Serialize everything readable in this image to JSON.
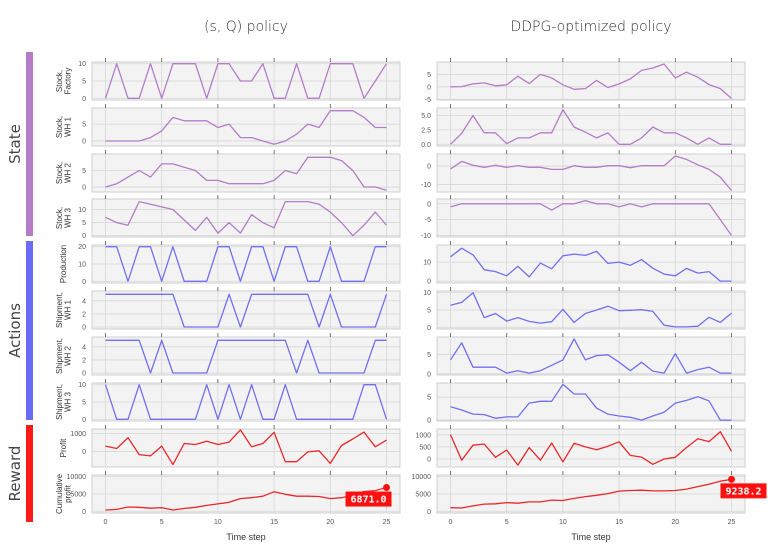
{
  "sections": [
    {
      "label": "State",
      "color": "#b57cc8"
    },
    {
      "label": "Actions",
      "color": "#6b6bf5"
    },
    {
      "label": "Reward",
      "color": "#ff1a1a"
    }
  ],
  "colors": {
    "state": "#b57cc8",
    "actions": "#7070f0",
    "reward": "#e8282a"
  },
  "chart_data": [
    {
      "type": "line",
      "title": "(s, Q) policy",
      "xlabel": "Time step",
      "x": [
        0,
        1,
        2,
        3,
        4,
        5,
        6,
        7,
        8,
        9,
        10,
        11,
        12,
        13,
        14,
        15,
        16,
        17,
        18,
        19,
        20,
        21,
        22,
        23,
        24,
        25
      ],
      "xticks": [
        0,
        5,
        10,
        15,
        20,
        25
      ],
      "xlim": [
        -1.2,
        26.2
      ],
      "grid": true,
      "final_annotation": "6871.0",
      "subplots": [
        {
          "section": "State",
          "ylabel_lines": [
            "Stock,",
            "Factory"
          ],
          "yticks": [
            0,
            5,
            10
          ],
          "ylim": [
            -0.5,
            10.5
          ],
          "values": [
            0,
            10,
            0,
            0,
            10,
            0,
            10,
            10,
            10,
            0,
            10,
            10,
            5,
            5,
            10,
            0,
            0,
            10,
            0,
            0,
            10,
            10,
            10,
            0,
            5,
            10
          ]
        },
        {
          "section": "State",
          "ylabel_lines": [
            "Stock,",
            "WH 1"
          ],
          "yticks": [
            0,
            5
          ],
          "ylim": [
            -1.5,
            9.8
          ],
          "values": [
            0,
            0,
            0,
            0,
            1,
            3,
            7,
            6,
            6,
            6,
            4,
            5,
            1,
            1,
            0,
            -1,
            0,
            2,
            5,
            4,
            9,
            9,
            9,
            7,
            4,
            4
          ]
        },
        {
          "section": "State",
          "ylabel_lines": [
            "Stock,",
            "WH 2"
          ],
          "yticks": [
            0,
            5
          ],
          "ylim": [
            -1.5,
            10
          ],
          "values": [
            0,
            1,
            3,
            5,
            3,
            7,
            7,
            6,
            5,
            2,
            2,
            1,
            1,
            1,
            1,
            2,
            5,
            4,
            9,
            9,
            9,
            8,
            5,
            0,
            0,
            -1
          ]
        },
        {
          "section": "State",
          "ylabel_lines": [
            "Stock,",
            "WH 3"
          ],
          "yticks": [
            0,
            5,
            10
          ],
          "ylim": [
            -0.5,
            14
          ],
          "values": [
            7,
            5,
            4,
            13,
            12,
            11,
            10,
            6,
            2,
            7,
            1,
            5,
            1,
            8,
            5,
            3,
            13,
            13,
            13,
            12,
            9,
            5,
            0,
            4,
            9,
            4
          ]
        },
        {
          "section": "Actions",
          "ylabel_lines": [
            "Production"
          ],
          "yticks": [
            0,
            10,
            20
          ],
          "ylim": [
            -1,
            21
          ],
          "values": [
            20,
            20,
            0,
            20,
            20,
            0,
            20,
            0,
            0,
            0,
            20,
            20,
            0,
            20,
            20,
            0,
            20,
            20,
            0,
            0,
            20,
            0,
            0,
            0,
            20,
            20
          ]
        },
        {
          "section": "Actions",
          "ylabel_lines": [
            "Shipment,",
            "WH 1"
          ],
          "yticks": [
            0,
            2,
            4
          ],
          "ylim": [
            -0.3,
            5.5
          ],
          "values": [
            5,
            5,
            5,
            5,
            5,
            5,
            5,
            0,
            0,
            0,
            0,
            5,
            0,
            5,
            5,
            5,
            5,
            5,
            5,
            0,
            5,
            0,
            0,
            0,
            0,
            5
          ]
        },
        {
          "section": "Actions",
          "ylabel_lines": [
            "Shipment,",
            "WH 2"
          ],
          "yticks": [
            0,
            2,
            4
          ],
          "ylim": [
            -0.3,
            5.5
          ],
          "values": [
            5,
            5,
            5,
            5,
            0,
            5,
            0,
            0,
            0,
            0,
            5,
            5,
            5,
            5,
            5,
            5,
            5,
            0,
            5,
            0,
            0,
            0,
            0,
            0,
            5,
            5
          ]
        },
        {
          "section": "Actions",
          "ylabel_lines": [
            "Shipment,",
            "WH 3"
          ],
          "yticks": [
            0,
            5,
            10
          ],
          "ylim": [
            -0.5,
            10.5
          ],
          "values": [
            10,
            0,
            0,
            10,
            0,
            0,
            0,
            0,
            0,
            10,
            0,
            10,
            0,
            10,
            0,
            0,
            10,
            0,
            0,
            0,
            0,
            0,
            0,
            10,
            10,
            0
          ]
        },
        {
          "section": "Reward",
          "ylabel_lines": [
            "Profit"
          ],
          "yticks": [
            0,
            1000
          ],
          "ylim": [
            -850,
            1240
          ],
          "values": [
            300,
            170,
            760,
            -170,
            -240,
            300,
            -720,
            440,
            390,
            570,
            390,
            520,
            1190,
            260,
            440,
            1060,
            -560,
            -560,
            -20,
            40,
            -650,
            330,
            690,
            1070,
            260,
            630
          ]
        },
        {
          "section": "Reward",
          "ylabel_lines": [
            "Cumulative",
            "profit"
          ],
          "yticks": [
            0,
            5000,
            10000
          ],
          "ylim": [
            -500,
            10500
          ],
          "values": [
            360,
            540,
            1250,
            1160,
            890,
            1070,
            360,
            800,
            1160,
            1700,
            2140,
            2590,
            3660,
            3930,
            4370,
            5625,
            4900,
            4370,
            4370,
            4280,
            3660,
            3930,
            4640,
            5710,
            5980,
            6871.0
          ]
        }
      ]
    },
    {
      "type": "line",
      "title": "DDPG-optimized policy",
      "xlabel": "Time step",
      "x": [
        0,
        1,
        2,
        3,
        4,
        5,
        6,
        7,
        8,
        9,
        10,
        11,
        12,
        13,
        14,
        15,
        16,
        17,
        18,
        19,
        20,
        21,
        22,
        23,
        24,
        25
      ],
      "xticks": [
        0,
        5,
        10,
        15,
        20,
        25
      ],
      "xlim": [
        -1.2,
        26.2
      ],
      "grid": true,
      "final_annotation": "9238.2",
      "subplots": [
        {
          "section": "State",
          "yticks": [
            -5,
            0,
            5
          ],
          "ylim": [
            -5.3,
            10
          ],
          "values": [
            0,
            0.1,
            1.2,
            1.6,
            0.4,
            0.8,
            4.3,
            1.3,
            5,
            3.6,
            0.8,
            -1,
            -0.7,
            2.6,
            -0.3,
            1.2,
            3.2,
            6.6,
            7.6,
            9.2,
            3.6,
            5.9,
            3.9,
            0.9,
            -0.7,
            -4.7
          ]
        },
        {
          "section": "State",
          "yticks": [
            0.0,
            2.5,
            5.0
          ],
          "ytick_labels": [
            "0.0",
            "2.5",
            "5.0"
          ],
          "ylim": [
            -0.3,
            6.3
          ],
          "values": [
            0,
            1.9,
            5,
            2,
            2,
            0.1,
            1.1,
            1.1,
            2,
            2,
            6,
            3,
            2.1,
            1.1,
            2,
            0,
            0,
            1.1,
            3,
            2,
            2,
            1.1,
            0,
            1.1,
            0,
            0
          ]
        },
        {
          "section": "State",
          "yticks": [
            -10,
            0
          ],
          "ylim": [
            -14,
            6.5
          ],
          "values": [
            -1.6,
            2.5,
            0.4,
            -0.7,
            0.4,
            -0.7,
            0.2,
            -0.7,
            -0.7,
            -1.8,
            -1.8,
            0.2,
            -0.7,
            -0.7,
            0.2,
            0.2,
            -0.9,
            0.2,
            0.2,
            0.2,
            5.4,
            3.6,
            0.7,
            -1.8,
            -6,
            -13.2
          ]
        },
        {
          "section": "State",
          "yticks": [
            -10,
            -5,
            0
          ],
          "ylim": [
            -10.5,
            1.5
          ],
          "values": [
            -1,
            0,
            0,
            0,
            0,
            0,
            0,
            0,
            0,
            -2,
            0,
            0,
            1,
            0,
            0,
            -1,
            0,
            -1,
            0,
            0,
            0,
            0,
            0,
            0,
            -5,
            -10
          ]
        },
        {
          "section": "Actions",
          "yticks": [
            0,
            10
          ],
          "ylim": [
            -1,
            19
          ],
          "values": [
            12.8,
            17.3,
            13.8,
            6,
            5,
            2.8,
            7.8,
            2.2,
            9.5,
            6.5,
            13.3,
            14.2,
            13.5,
            15.7,
            9.3,
            10,
            8.3,
            11.3,
            6.8,
            3.7,
            2.8,
            6.7,
            4.2,
            5,
            0,
            0
          ]
        },
        {
          "section": "Actions",
          "yticks": [
            0,
            5,
            10
          ],
          "ylim": [
            -0.5,
            10.5
          ],
          "values": [
            6.4,
            7.2,
            10,
            2.8,
            4,
            1.8,
            2.8,
            1.7,
            1.2,
            1.6,
            5.2,
            1.4,
            4,
            5,
            6.1,
            4.8,
            4.9,
            5.1,
            4.6,
            0.6,
            0.1,
            0.1,
            0.3,
            2.9,
            1.4,
            4.1
          ]
        },
        {
          "section": "Actions",
          "yticks": [
            0,
            5
          ],
          "ylim": [
            -0.3,
            9.5
          ],
          "values": [
            3.6,
            8,
            1.7,
            1.7,
            1.7,
            0.2,
            0.8,
            0.2,
            0.8,
            2.2,
            3.6,
            9,
            3.6,
            4.7,
            4.9,
            3,
            0.8,
            3,
            0.7,
            0.2,
            5.2,
            0.2,
            1.1,
            1.7,
            0.2,
            0.2
          ]
        },
        {
          "section": "Actions",
          "yticks": [
            0,
            5
          ],
          "ylim": [
            -0.2,
            8.1
          ],
          "values": [
            2.9,
            2.2,
            1.3,
            1.2,
            0.4,
            0.7,
            0.7,
            3.7,
            4.1,
            4.1,
            7.8,
            5.7,
            5.7,
            2.6,
            1.3,
            0.9,
            0.6,
            0,
            0.9,
            1.7,
            3.7,
            4.3,
            5.1,
            4.2,
            0,
            0
          ]
        },
        {
          "section": "Reward",
          "yticks": [
            0,
            500,
            1000
          ],
          "ylim": [
            -330,
            1240
          ],
          "values": [
            1000,
            -50,
            570,
            620,
            70,
            370,
            -250,
            470,
            -50,
            660,
            -120,
            650,
            500,
            380,
            530,
            710,
            150,
            80,
            -220,
            0,
            70,
            470,
            840,
            720,
            1130,
            320
          ]
        },
        {
          "section": "Reward",
          "yticks": [
            0,
            5000,
            10000
          ],
          "ylim": [
            -500,
            10500
          ],
          "values": [
            1040,
            960,
            1560,
            2090,
            2170,
            2520,
            2350,
            2700,
            2700,
            3220,
            3130,
            3740,
            4260,
            4610,
            5130,
            5830,
            6000,
            6090,
            5910,
            5910,
            6000,
            6430,
            7130,
            7830,
            8700,
            9238.2
          ]
        }
      ]
    }
  ]
}
